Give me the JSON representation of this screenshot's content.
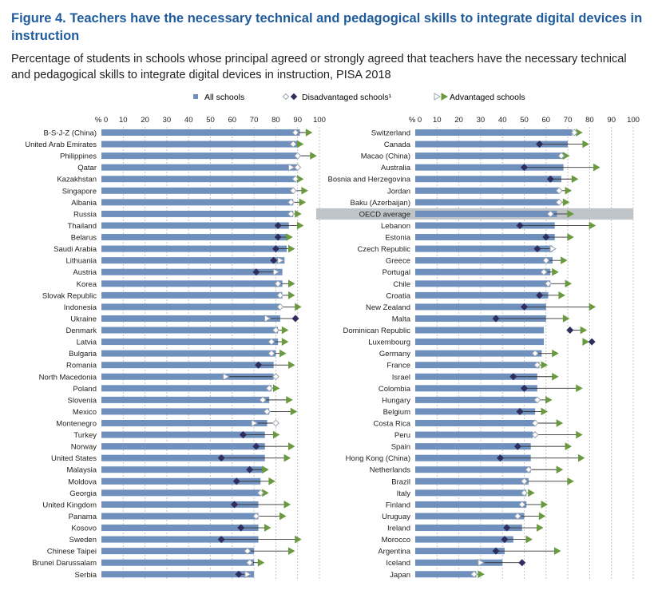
{
  "figure": {
    "title": "Figure 4. Teachers have the necessary technical and pedagogical skills to integrate digital devices in instruction",
    "subtitle": "Percentage of students in schools whose principal agreed or strongly agreed that teachers have the necessary technical and pedagogical skills to integrate digital devices in instruction, PISA 2018"
  },
  "legend": {
    "all": "All schools",
    "disadvantaged": "Disadvantaged schools¹",
    "advantaged": "Advantaged schools"
  },
  "colors": {
    "bar": "#6f8fbd",
    "adv_up": "#6a9a3f",
    "adv_down_fill": "#ffffff",
    "adv_down_stroke": "#9aa3ad",
    "dis_low": "#2e2e5e",
    "dis_high_fill": "#ffffff",
    "dis_high_stroke": "#9aa3ad",
    "grid": "#b8b8b8",
    "oecd_band": "#bfc4c8",
    "text": "#222222"
  },
  "chart_data": [
    {
      "type": "bar",
      "axis_unit_label": "% 0",
      "xlim": [
        0,
        100
      ],
      "ticks": [
        "10",
        "20",
        "30",
        "40",
        "50",
        "60",
        "70",
        "80",
        "90",
        "100"
      ],
      "categories": [
        "B-S-J-Z (China)",
        "United Arab Emirates",
        "Philippines",
        "Qatar",
        "Kazakhstan",
        "Singapore",
        "Albania",
        "Russia",
        "Thailand",
        "Belarus",
        "Saudi Arabia",
        "Lithuania",
        "Austria",
        "Korea",
        "Slovak Republic",
        "Indonesia",
        "Ukraine",
        "Denmark",
        "Latvia",
        "Bulgaria",
        "Romania",
        "North Macedonia",
        "Poland",
        "Slovenia",
        "Mexico",
        "Montenegro",
        "Turkey",
        "Norway",
        "United States",
        "Malaysia",
        "Moldova",
        "Georgia",
        "United Kingdom",
        "Panama",
        "Kosovo",
        "Sweden",
        "Chinese Taipei",
        "Brunei Darussalam",
        "Serbia"
      ],
      "series": [
        {
          "name": "All schools",
          "values": [
            91,
            90,
            90,
            90,
            89,
            88,
            88,
            88,
            86,
            85,
            85,
            84,
            83,
            83,
            83,
            82,
            82,
            81,
            81,
            80,
            79,
            79,
            78,
            77,
            77,
            76,
            75,
            75,
            75,
            74,
            73,
            73,
            72,
            72,
            72,
            72,
            70,
            70,
            70
          ]
        },
        {
          "name": "Disadvantaged schools¹",
          "values": [
            89,
            88,
            90,
            90,
            89,
            88,
            87,
            87,
            81,
            81,
            80,
            79,
            71,
            81,
            82,
            82,
            89,
            80,
            78,
            78,
            72,
            80,
            77,
            74,
            76,
            80,
            65,
            71,
            55,
            68,
            62,
            73,
            61,
            71,
            64,
            55,
            67,
            68,
            63
          ]
        },
        {
          "name": "Advantaged schools",
          "values": [
            95,
            91,
            97,
            87,
            91,
            93,
            92,
            90,
            91,
            86,
            87,
            82,
            80,
            87,
            87,
            90,
            76,
            84,
            84,
            83,
            87,
            57,
            80,
            86,
            88,
            70,
            80,
            87,
            85,
            75,
            78,
            75,
            85,
            83,
            76,
            90,
            87,
            73,
            67
          ]
        }
      ]
    },
    {
      "type": "bar",
      "axis_unit_label": "% 0",
      "xlim": [
        0,
        100
      ],
      "ticks": [
        "10",
        "20",
        "30",
        "40",
        "50",
        "60",
        "70",
        "80",
        "90",
        "100"
      ],
      "categories": [
        "Switzerland",
        "Canada",
        "Macao (China)",
        "Australia",
        "Bosnia and Herzegovina",
        "Jordan",
        "Baku (Azerbaijan)",
        "OECD average",
        "Lebanon",
        "Estonia",
        "Czech Republic",
        "Greece",
        "Portugal",
        "Chile",
        "Croatia",
        "New Zealand",
        "Malta",
        "Dominican Republic",
        "Luxembourg",
        "Germany",
        "France",
        "Israel",
        "Colombia",
        "Hungary",
        "Belgium",
        "Costa Rica",
        "Peru",
        "Spain",
        "Hong Kong (China)",
        "Netherlands",
        "Brazil",
        "Italy",
        "Finland",
        "Uruguay",
        "Ireland",
        "Morocco",
        "Argentina",
        "Iceland",
        "Japan"
      ],
      "highlight": "OECD average",
      "series": [
        {
          "name": "All schools",
          "values": [
            72,
            70,
            68,
            68,
            67,
            66,
            66,
            65,
            64,
            64,
            63,
            63,
            62,
            62,
            61,
            60,
            60,
            59,
            59,
            58,
            57,
            56,
            56,
            56,
            55,
            55,
            54,
            53,
            53,
            53,
            52,
            51,
            51,
            50,
            49,
            45,
            41,
            40,
            28
          ]
        },
        {
          "name": "Disadvantaged schools¹",
          "values": [
            73,
            57,
            67,
            50,
            62,
            66,
            66,
            62,
            48,
            60,
            56,
            60,
            59,
            61,
            57,
            50,
            37,
            71,
            81,
            55,
            56,
            45,
            50,
            56,
            48,
            55,
            55,
            47,
            39,
            52,
            50,
            50,
            49,
            47,
            42,
            41,
            37,
            49,
            27
          ]
        },
        {
          "name": "Advantaged schools",
          "values": [
            75,
            78,
            69,
            83,
            73,
            70,
            69,
            71,
            81,
            71,
            63,
            68,
            64,
            70,
            67,
            81,
            69,
            77,
            78,
            64,
            59,
            64,
            75,
            61,
            59,
            66,
            75,
            70,
            76,
            66,
            71,
            53,
            59,
            58,
            57,
            52,
            65,
            30,
            30
          ]
        }
      ]
    }
  ]
}
